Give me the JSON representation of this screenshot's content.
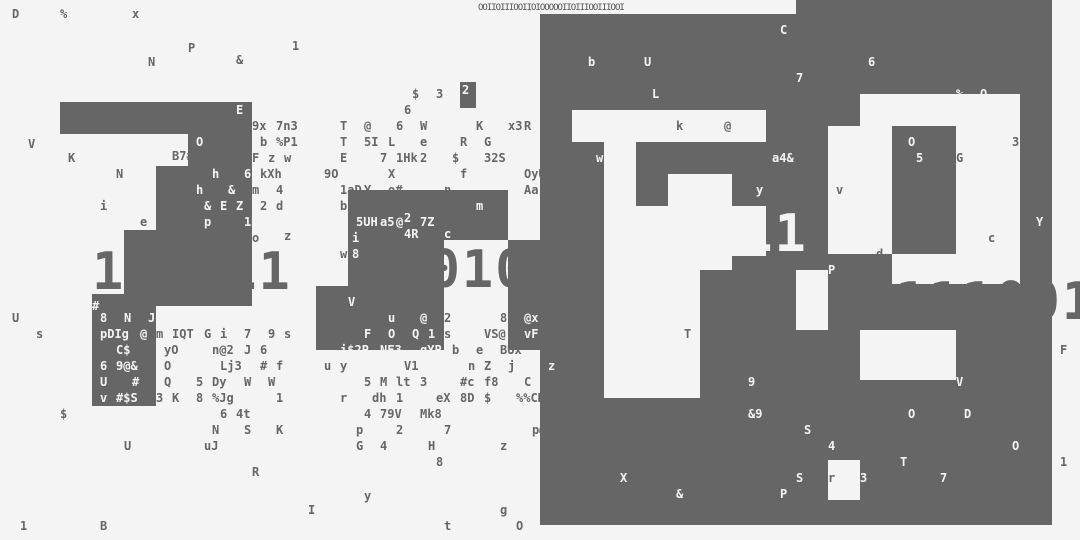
{
  "top_strip": "OOIIOIIIOOIIOIOOOOOIIOIIIOOIIIOOI",
  "big_strings": [
    {
      "text": "110111",
      "tone": "dark"
    },
    {
      "text": "110100",
      "tone": "dark"
    },
    {
      "text": "110111",
      "tone": "light"
    },
    {
      "text": "1111001",
      "tone": "dark"
    }
  ],
  "colors": {
    "background": "#f4f4f4",
    "ink": "#666666"
  },
  "glyphs": [
    "D",
    "%",
    "x",
    "P",
    "1",
    "N",
    "&",
    "$",
    "3",
    "2",
    "6",
    "E",
    "9x",
    "7n3",
    "b",
    "%P1",
    "O",
    "B7#",
    "F",
    "z",
    "w",
    "h",
    "6",
    "kXh",
    "&",
    "m",
    "4",
    "&",
    "E",
    "Z",
    "2",
    "d",
    "i",
    "e",
    "p",
    "1N5OB@",
    "o",
    "z",
    "h",
    "V",
    "K",
    "N",
    "U",
    "s",
    "#",
    "8",
    "N",
    "Jo",
    "pDIg",
    "@",
    "m",
    "IQT",
    "G",
    "i",
    "7",
    "9",
    "s",
    "C$",
    "yO",
    "n@2",
    "J",
    "6",
    "6",
    "9@&",
    "O",
    "Lj3",
    "#",
    "f",
    "U",
    "#",
    "Q",
    "5",
    "Dy",
    "W",
    "W",
    "v",
    "#$S",
    "3",
    "K",
    "8",
    "%Jg",
    "1",
    "$",
    "6",
    "4t",
    "N",
    "S",
    "K",
    "uJ",
    "U",
    "R",
    "y",
    "I",
    "1",
    "B",
    "t",
    "g",
    "O",
    "T",
    "@",
    "6",
    "W",
    "K",
    "x3",
    "R",
    "T",
    "5I",
    "L",
    "e",
    "R",
    "G",
    "E",
    "7",
    "1Hk",
    "2",
    "$",
    "32S",
    "9O",
    "X",
    "f",
    "OyU",
    "1aD",
    "Y",
    "o#",
    "n",
    "Aa",
    "b",
    "m",
    "5UH",
    "a5",
    "@",
    "7Z",
    "4R",
    "2",
    "w",
    "8",
    "i",
    "c",
    "V",
    "u",
    "@",
    "2",
    "8$",
    "@x",
    "F",
    "O",
    "Q",
    "1",
    "s",
    "VS@",
    "vF",
    "i$2P",
    "NF3",
    "gYP",
    "b",
    "e",
    "BUx",
    "u",
    "y",
    "V1",
    "n",
    "Z",
    "j",
    "z",
    "5",
    "M",
    "lt",
    "3",
    "#c",
    "f8",
    "C",
    "r",
    "dh",
    "1",
    "eX",
    "8D",
    "$",
    "%%CK",
    "4",
    "79V",
    "Mk8",
    "p",
    "2",
    "7",
    "p@",
    "G",
    "4",
    "H",
    "z",
    "8",
    "b",
    "U",
    "C",
    "7",
    "6",
    "L",
    "k",
    "@",
    "w",
    "a4&",
    "y",
    "v",
    "d",
    "Y",
    "c",
    "%",
    "Q",
    "O",
    "5",
    "G",
    "3",
    "P",
    "T",
    "9",
    "V",
    "&9",
    "D",
    "O",
    "S",
    "4",
    "O",
    "F",
    "1",
    "S",
    "r",
    "3",
    "T",
    "7",
    "X",
    "&",
    "P"
  ]
}
